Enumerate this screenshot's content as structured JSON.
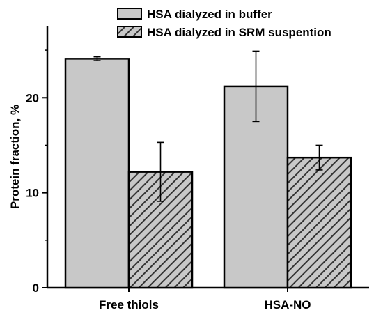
{
  "chart_data": {
    "type": "bar",
    "categories": [
      "Free thiols",
      "HSA-NO"
    ],
    "series": [
      {
        "name": "HSA dialyzed in buffer",
        "values": [
          24.1,
          21.2
        ],
        "errors": [
          0.2,
          3.7
        ],
        "fill": "#c8c8c8",
        "pattern": "solid"
      },
      {
        "name": "HSA dialyzed in SRM suspention",
        "values": [
          12.2,
          13.7
        ],
        "errors": [
          3.1,
          1.3
        ],
        "fill": "#c8c8c8",
        "pattern": "hatch"
      }
    ],
    "title": "",
    "xlabel": "",
    "ylabel": "Protein fraction, %",
    "ylim": [
      0,
      27.5
    ],
    "yticks": [
      0,
      10,
      20
    ],
    "grid": false,
    "legend_position": "top"
  }
}
